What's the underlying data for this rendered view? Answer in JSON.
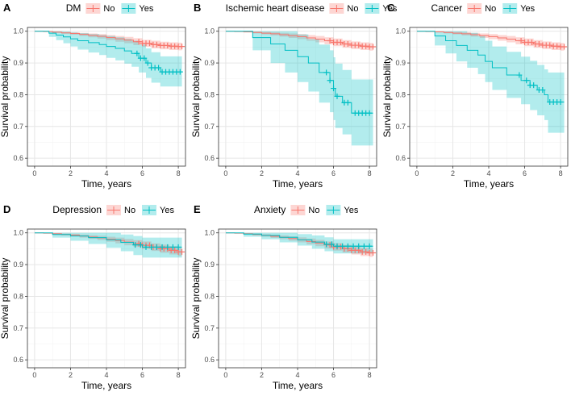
{
  "colors": {
    "no": "#F8766D",
    "yes": "#00BFC4",
    "no_band": "#F8766D",
    "yes_band": "#00BFC4",
    "grid_major": "#e6e6e6",
    "grid_minor": "#f3f3f3",
    "panel_border": "#333333"
  },
  "legend_labels": {
    "no": "No",
    "yes": "Yes"
  },
  "chart_data": [
    {
      "type": "line",
      "panel": "A",
      "legend_title": "DM",
      "xlabel": "Time, years",
      "ylabel": "Survival probability",
      "xlim": [
        -0.4,
        8.4
      ],
      "ylim": [
        0.575,
        1.012
      ],
      "xticks": [
        0,
        2,
        4,
        6,
        8
      ],
      "yticks": [
        0.6,
        0.7,
        0.8,
        0.9,
        1.0
      ],
      "series": [
        {
          "name": "No",
          "color_key": "no",
          "x": [
            0,
            0.5,
            1,
            1.5,
            2,
            2.5,
            3,
            3.5,
            4,
            4.5,
            5,
            5.5,
            6,
            6.5,
            7,
            7.5,
            8,
            8.2
          ],
          "y": [
            1.0,
            0.999,
            0.997,
            0.995,
            0.993,
            0.99,
            0.987,
            0.984,
            0.98,
            0.976,
            0.972,
            0.967,
            0.962,
            0.958,
            0.955,
            0.953,
            0.952,
            0.952
          ],
          "lower": [
            1.0,
            0.998,
            0.995,
            0.992,
            0.989,
            0.985,
            0.981,
            0.977,
            0.972,
            0.967,
            0.962,
            0.956,
            0.951,
            0.946,
            0.943,
            0.941,
            0.94,
            0.94
          ],
          "upper": [
            1.0,
            1.0,
            0.999,
            0.998,
            0.997,
            0.995,
            0.993,
            0.991,
            0.988,
            0.985,
            0.982,
            0.978,
            0.973,
            0.97,
            0.967,
            0.965,
            0.964,
            0.964
          ],
          "censor_x": [
            5.8,
            6.0,
            6.2,
            6.4,
            6.6,
            6.8,
            7.0,
            7.2,
            7.4,
            7.6,
            7.8,
            8.0,
            8.2
          ]
        },
        {
          "name": "Yes",
          "color_key": "yes",
          "x": [
            0,
            0.8,
            1.2,
            1.6,
            2.0,
            2.4,
            3.0,
            3.6,
            4.0,
            4.5,
            5.0,
            5.4,
            5.8,
            6.2,
            6.5,
            7.0,
            8.2
          ],
          "y": [
            1.0,
            0.994,
            0.988,
            0.982,
            0.976,
            0.97,
            0.964,
            0.958,
            0.952,
            0.946,
            0.938,
            0.93,
            0.915,
            0.9,
            0.885,
            0.872,
            0.872
          ],
          "lower": [
            1.0,
            0.982,
            0.972,
            0.962,
            0.952,
            0.942,
            0.933,
            0.925,
            0.916,
            0.908,
            0.898,
            0.888,
            0.87,
            0.853,
            0.838,
            0.826,
            0.826
          ],
          "upper": [
            1.0,
            1.0,
            1.0,
            0.999,
            0.996,
            0.994,
            0.991,
            0.988,
            0.985,
            0.981,
            0.976,
            0.97,
            0.958,
            0.946,
            0.934,
            0.921,
            0.921
          ],
          "censor_x": [
            5.7,
            5.9,
            6.1,
            6.3,
            6.5,
            6.7,
            6.9,
            7.1,
            7.3,
            7.5,
            7.7,
            7.9,
            8.1
          ]
        }
      ]
    },
    {
      "type": "line",
      "panel": "B",
      "legend_title": "Ischemic heart disease",
      "xlabel": "Time, years",
      "ylabel": "Survival probability",
      "xlim": [
        -0.4,
        8.4
      ],
      "ylim": [
        0.575,
        1.012
      ],
      "xticks": [
        0,
        2,
        4,
        6,
        8
      ],
      "yticks": [
        0.6,
        0.7,
        0.8,
        0.9,
        1.0
      ],
      "series": [
        {
          "name": "No",
          "color_key": "no",
          "x": [
            0,
            0.5,
            1,
            1.5,
            2,
            2.5,
            3,
            3.5,
            4,
            4.5,
            5,
            5.5,
            6,
            6.5,
            7,
            7.5,
            8,
            8.2
          ],
          "y": [
            1.0,
            0.999,
            0.998,
            0.996,
            0.994,
            0.992,
            0.989,
            0.986,
            0.983,
            0.979,
            0.975,
            0.97,
            0.965,
            0.96,
            0.956,
            0.953,
            0.951,
            0.951
          ],
          "lower": [
            1.0,
            0.998,
            0.996,
            0.993,
            0.99,
            0.987,
            0.983,
            0.979,
            0.975,
            0.97,
            0.965,
            0.959,
            0.953,
            0.948,
            0.944,
            0.941,
            0.939,
            0.939
          ],
          "upper": [
            1.0,
            1.0,
            1.0,
            0.999,
            0.998,
            0.997,
            0.995,
            0.993,
            0.991,
            0.988,
            0.985,
            0.981,
            0.977,
            0.972,
            0.968,
            0.965,
            0.963,
            0.963
          ],
          "censor_x": [
            5.8,
            6.0,
            6.2,
            6.4,
            6.6,
            6.8,
            7.0,
            7.2,
            7.4,
            7.6,
            7.8,
            8.0,
            8.2
          ]
        },
        {
          "name": "Yes",
          "color_key": "yes",
          "x": [
            0,
            1.5,
            2.5,
            3.3,
            4.0,
            4.6,
            5.2,
            5.8,
            6.0,
            6.1,
            6.5,
            7.0,
            8.2
          ],
          "y": [
            1.0,
            0.98,
            0.96,
            0.94,
            0.92,
            0.9,
            0.87,
            0.845,
            0.82,
            0.795,
            0.775,
            0.742,
            0.742
          ],
          "lower": [
            1.0,
            0.94,
            0.9,
            0.87,
            0.84,
            0.81,
            0.775,
            0.745,
            0.72,
            0.695,
            0.675,
            0.64,
            0.64
          ],
          "upper": [
            1.0,
            1.0,
            1.0,
            1.0,
            0.99,
            0.975,
            0.958,
            0.94,
            0.918,
            0.898,
            0.878,
            0.848,
            0.848
          ],
          "censor_x": [
            5.6,
            5.8,
            6.0,
            6.2,
            6.6,
            6.8,
            7.2,
            7.4,
            7.6,
            7.8,
            8.0
          ]
        }
      ]
    },
    {
      "type": "line",
      "panel": "C",
      "legend_title": "Cancer",
      "xlabel": "Time, years",
      "ylabel": "Survival probability",
      "xlim": [
        -0.4,
        8.4
      ],
      "ylim": [
        0.575,
        1.012
      ],
      "xticks": [
        0,
        2,
        4,
        6,
        8
      ],
      "yticks": [
        0.6,
        0.7,
        0.8,
        0.9,
        1.0
      ],
      "series": [
        {
          "name": "No",
          "color_key": "no",
          "x": [
            0,
            0.5,
            1,
            1.5,
            2,
            2.5,
            3,
            3.5,
            4,
            4.5,
            5,
            5.5,
            6,
            6.5,
            7,
            7.5,
            8,
            8.2
          ],
          "y": [
            1.0,
            0.999,
            0.998,
            0.996,
            0.994,
            0.992,
            0.989,
            0.986,
            0.983,
            0.979,
            0.975,
            0.97,
            0.965,
            0.96,
            0.956,
            0.953,
            0.951,
            0.951
          ],
          "lower": [
            1.0,
            0.998,
            0.996,
            0.993,
            0.99,
            0.987,
            0.983,
            0.979,
            0.975,
            0.97,
            0.965,
            0.959,
            0.953,
            0.948,
            0.944,
            0.941,
            0.939,
            0.939
          ],
          "upper": [
            1.0,
            1.0,
            1.0,
            0.999,
            0.998,
            0.997,
            0.995,
            0.993,
            0.991,
            0.988,
            0.985,
            0.981,
            0.977,
            0.972,
            0.968,
            0.965,
            0.963,
            0.963
          ],
          "censor_x": [
            5.8,
            6.0,
            6.2,
            6.4,
            6.6,
            6.8,
            7.0,
            7.2,
            7.4,
            7.6,
            7.8,
            8.0,
            8.2
          ]
        },
        {
          "name": "Yes",
          "color_key": "yes",
          "x": [
            0,
            1.0,
            1.6,
            2.2,
            2.8,
            3.4,
            3.8,
            4.2,
            5.0,
            5.8,
            6.3,
            6.7,
            7.1,
            7.3,
            8.2
          ],
          "y": [
            1.0,
            0.985,
            0.97,
            0.955,
            0.94,
            0.925,
            0.905,
            0.885,
            0.862,
            0.845,
            0.83,
            0.815,
            0.8,
            0.777,
            0.777
          ],
          "lower": [
            1.0,
            0.955,
            0.93,
            0.905,
            0.885,
            0.865,
            0.84,
            0.815,
            0.79,
            0.77,
            0.752,
            0.735,
            0.72,
            0.68,
            0.68
          ],
          "upper": [
            1.0,
            1.0,
            1.0,
            1.0,
            0.995,
            0.985,
            0.97,
            0.952,
            0.935,
            0.92,
            0.907,
            0.894,
            0.88,
            0.87,
            0.87
          ],
          "censor_x": [
            5.7,
            6.1,
            6.3,
            6.5,
            6.8,
            7.0,
            7.4,
            7.6,
            7.8,
            8.0
          ]
        }
      ]
    },
    {
      "type": "line",
      "panel": "D",
      "legend_title": "Depression",
      "xlabel": "Time, years",
      "ylabel": "Survival probability",
      "xlim": [
        -0.4,
        8.4
      ],
      "ylim": [
        0.575,
        1.012
      ],
      "xticks": [
        0,
        2,
        4,
        6,
        8
      ],
      "yticks": [
        0.6,
        0.7,
        0.8,
        0.9,
        1.0
      ],
      "series": [
        {
          "name": "No",
          "color_key": "no",
          "x": [
            0,
            0.5,
            1,
            1.5,
            2,
            2.5,
            3,
            3.5,
            4,
            4.5,
            5,
            5.5,
            6,
            6.5,
            7,
            7.5,
            8,
            8.2
          ],
          "y": [
            1.0,
            0.999,
            0.997,
            0.995,
            0.993,
            0.99,
            0.987,
            0.984,
            0.98,
            0.976,
            0.971,
            0.966,
            0.961,
            0.955,
            0.95,
            0.945,
            0.94,
            0.94
          ],
          "lower": [
            1.0,
            0.998,
            0.995,
            0.992,
            0.989,
            0.985,
            0.981,
            0.977,
            0.972,
            0.967,
            0.961,
            0.955,
            0.949,
            0.943,
            0.937,
            0.932,
            0.927,
            0.927
          ],
          "upper": [
            1.0,
            1.0,
            0.999,
            0.998,
            0.997,
            0.995,
            0.993,
            0.991,
            0.988,
            0.985,
            0.981,
            0.977,
            0.973,
            0.967,
            0.963,
            0.958,
            0.953,
            0.953
          ],
          "censor_x": [
            5.8,
            6.0,
            6.2,
            6.4,
            6.6,
            6.8,
            7.0,
            7.2,
            7.4,
            7.6,
            7.8,
            8.0,
            8.2
          ]
        },
        {
          "name": "Yes",
          "color_key": "yes",
          "x": [
            0,
            1.0,
            2.0,
            3.0,
            4.0,
            4.8,
            5.5,
            6.0,
            8.2
          ],
          "y": [
            1.0,
            0.995,
            0.99,
            0.985,
            0.978,
            0.97,
            0.962,
            0.955,
            0.955
          ],
          "lower": [
            1.0,
            0.985,
            0.975,
            0.965,
            0.953,
            0.942,
            0.93,
            0.922,
            0.922
          ],
          "upper": [
            1.0,
            1.0,
            1.0,
            1.0,
            1.0,
            0.995,
            0.99,
            0.985,
            0.985
          ],
          "censor_x": [
            5.6,
            5.9,
            6.2,
            6.5,
            6.8,
            7.1,
            7.4,
            7.7,
            8.0
          ]
        }
      ]
    },
    {
      "type": "line",
      "panel": "E",
      "legend_title": "Anxiety",
      "xlabel": "Time, years",
      "ylabel": "Survival probability",
      "xlim": [
        -0.4,
        8.4
      ],
      "ylim": [
        0.575,
        1.012
      ],
      "xticks": [
        0,
        2,
        4,
        6,
        8
      ],
      "yticks": [
        0.6,
        0.7,
        0.8,
        0.9,
        1.0
      ],
      "series": [
        {
          "name": "No",
          "color_key": "no",
          "x": [
            0,
            0.5,
            1,
            1.5,
            2,
            2.5,
            3,
            3.5,
            4,
            4.5,
            5,
            5.5,
            6,
            6.5,
            7,
            7.5,
            8,
            8.2
          ],
          "y": [
            1.0,
            0.999,
            0.997,
            0.995,
            0.992,
            0.989,
            0.986,
            0.982,
            0.978,
            0.973,
            0.968,
            0.962,
            0.956,
            0.95,
            0.945,
            0.94,
            0.937,
            0.937
          ],
          "lower": [
            1.0,
            0.998,
            0.995,
            0.992,
            0.988,
            0.984,
            0.98,
            0.975,
            0.97,
            0.964,
            0.958,
            0.951,
            0.944,
            0.938,
            0.932,
            0.927,
            0.924,
            0.924
          ],
          "upper": [
            1.0,
            1.0,
            0.999,
            0.998,
            0.996,
            0.994,
            0.992,
            0.989,
            0.986,
            0.982,
            0.978,
            0.973,
            0.968,
            0.962,
            0.958,
            0.953,
            0.95,
            0.95
          ],
          "censor_x": [
            5.8,
            6.0,
            6.2,
            6.4,
            6.6,
            6.8,
            7.0,
            7.2,
            7.4,
            7.6,
            7.8,
            8.0,
            8.2
          ]
        },
        {
          "name": "Yes",
          "color_key": "yes",
          "x": [
            0,
            1.0,
            2.0,
            3.0,
            4.0,
            4.8,
            5.5,
            6.0,
            8.2
          ],
          "y": [
            1.0,
            0.996,
            0.992,
            0.986,
            0.978,
            0.971,
            0.964,
            0.958,
            0.958
          ],
          "lower": [
            1.0,
            0.988,
            0.98,
            0.97,
            0.96,
            0.95,
            0.942,
            0.935,
            0.935
          ],
          "upper": [
            1.0,
            1.0,
            1.0,
            1.0,
            0.996,
            0.992,
            0.986,
            0.98,
            0.98
          ],
          "censor_x": [
            5.6,
            5.9,
            6.2,
            6.5,
            6.8,
            7.1,
            7.4,
            7.7,
            8.0
          ]
        }
      ]
    }
  ]
}
